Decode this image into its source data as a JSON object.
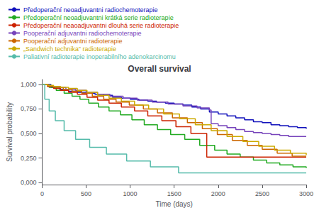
{
  "chart_data": {
    "type": "step",
    "title": "Overall survival",
    "xlabel": "Time (days)",
    "ylabel": "Survival probability",
    "xlim": [
      0,
      3000
    ],
    "ylim": [
      -0.02,
      1.05
    ],
    "xticks": [
      0,
      500,
      1000,
      1500,
      2000,
      2500,
      3000
    ],
    "yticks": [
      {
        "value": 0.0,
        "label": "0,000"
      },
      {
        "value": 0.25,
        "label": "0,250"
      },
      {
        "value": 0.5,
        "label": "0,500"
      },
      {
        "value": 0.75,
        "label": "0,750"
      },
      {
        "value": 1.0,
        "label": "1,000"
      }
    ],
    "grid": false,
    "legend": "top",
    "series": [
      {
        "name": "Předoperační neoadjuvantni radiochemoterapie",
        "color": "#1111bb",
        "x": [
          0,
          100,
          200,
          300,
          400,
          500,
          600,
          700,
          800,
          900,
          1000,
          1100,
          1200,
          1300,
          1400,
          1500,
          1600,
          1700,
          1800,
          1900,
          2000,
          2100,
          2200,
          2300,
          2400,
          2500,
          2600,
          2700,
          2800,
          2900,
          3000
        ],
        "values": [
          1.0,
          0.97,
          0.95,
          0.93,
          0.92,
          0.91,
          0.9,
          0.89,
          0.87,
          0.86,
          0.85,
          0.84,
          0.83,
          0.82,
          0.81,
          0.8,
          0.79,
          0.77,
          0.75,
          0.72,
          0.7,
          0.68,
          0.66,
          0.64,
          0.62,
          0.61,
          0.59,
          0.58,
          0.57,
          0.56,
          0.55
        ]
      },
      {
        "name": "Předoperační neoadjuvantni krátká serie radioterapie",
        "color": "#22aa22",
        "x": [
          0,
          80,
          160,
          250,
          340,
          430,
          530,
          640,
          760,
          890,
          1020,
          1160,
          1310,
          1460,
          1620,
          1790,
          1960,
          2100,
          2250,
          2400,
          2550,
          2700,
          2850,
          3000
        ],
        "values": [
          1.0,
          0.97,
          0.94,
          0.91,
          0.88,
          0.85,
          0.81,
          0.77,
          0.73,
          0.69,
          0.64,
          0.59,
          0.54,
          0.49,
          0.44,
          0.38,
          0.33,
          0.29,
          0.26,
          0.23,
          0.2,
          0.18,
          0.16,
          0.15
        ]
      },
      {
        "name": "Předoperační neaoadjuvantni dlouhá serie radioterapie",
        "color": "#cc2200",
        "x": [
          0,
          60,
          130,
          210,
          300,
          400,
          510,
          630,
          760,
          900,
          1050,
          1200,
          1360,
          1520,
          1690,
          1870,
          3000
        ],
        "values": [
          1.0,
          0.98,
          0.96,
          0.94,
          0.92,
          0.9,
          0.87,
          0.84,
          0.81,
          0.77,
          0.73,
          0.68,
          0.63,
          0.57,
          0.5,
          0.26,
          0.26
        ]
      },
      {
        "name": "Pooperační adjuvantni radiochemoterapie",
        "color": "#7744bb",
        "x": [
          0,
          80,
          170,
          270,
          380,
          500,
          630,
          770,
          920,
          1080,
          1250,
          1430,
          1600,
          1760,
          1900,
          1920,
          2000,
          2100,
          2200,
          2300,
          2400,
          2500,
          2600,
          2700,
          2800,
          2900,
          3000
        ],
        "values": [
          1.0,
          0.98,
          0.97,
          0.95,
          0.94,
          0.92,
          0.9,
          0.88,
          0.86,
          0.84,
          0.82,
          0.8,
          0.78,
          0.76,
          0.74,
          0.6,
          0.58,
          0.56,
          0.54,
          0.52,
          0.51,
          0.5,
          0.49,
          0.48,
          0.47,
          0.47,
          0.47
        ]
      },
      {
        "name": "Pooperační adjuvantni radioterapie",
        "color": "#cc6600",
        "x": [
          0,
          70,
          150,
          240,
          340,
          450,
          570,
          700,
          840,
          990,
          1150,
          1310,
          1480,
          1650,
          1820,
          1990,
          2160,
          2330,
          2500,
          2670,
          2840,
          3000
        ],
        "values": [
          1.0,
          0.98,
          0.97,
          0.95,
          0.93,
          0.91,
          0.88,
          0.85,
          0.82,
          0.79,
          0.75,
          0.71,
          0.66,
          0.61,
          0.55,
          0.49,
          0.43,
          0.38,
          0.34,
          0.3,
          0.27,
          0.27
        ]
      },
      {
        "name": "„Sandwich technika“ radioterapie",
        "color": "#ccaa00",
        "x": [
          0,
          60,
          130,
          210,
          300,
          400,
          510,
          630,
          760,
          900,
          1050,
          1210,
          1380,
          1560,
          1740,
          1920,
          2100,
          2280,
          2460,
          2640,
          2820,
          3000
        ],
        "values": [
          1.0,
          0.99,
          0.98,
          0.97,
          0.96,
          0.94,
          0.92,
          0.89,
          0.86,
          0.83,
          0.79,
          0.75,
          0.7,
          0.65,
          0.59,
          0.53,
          0.47,
          0.42,
          0.37,
          0.33,
          0.3,
          0.28
        ]
      },
      {
        "name": "Paliativní radioterapie inoperabilního adenokarcinomu",
        "color": "#55bbaa",
        "x": [
          0,
          30,
          80,
          150,
          250,
          380,
          540,
          730,
          960,
          1230,
          1550,
          3000
        ],
        "values": [
          1.0,
          0.85,
          0.73,
          0.63,
          0.53,
          0.44,
          0.36,
          0.29,
          0.22,
          0.16,
          0.1,
          0.1
        ]
      }
    ]
  }
}
